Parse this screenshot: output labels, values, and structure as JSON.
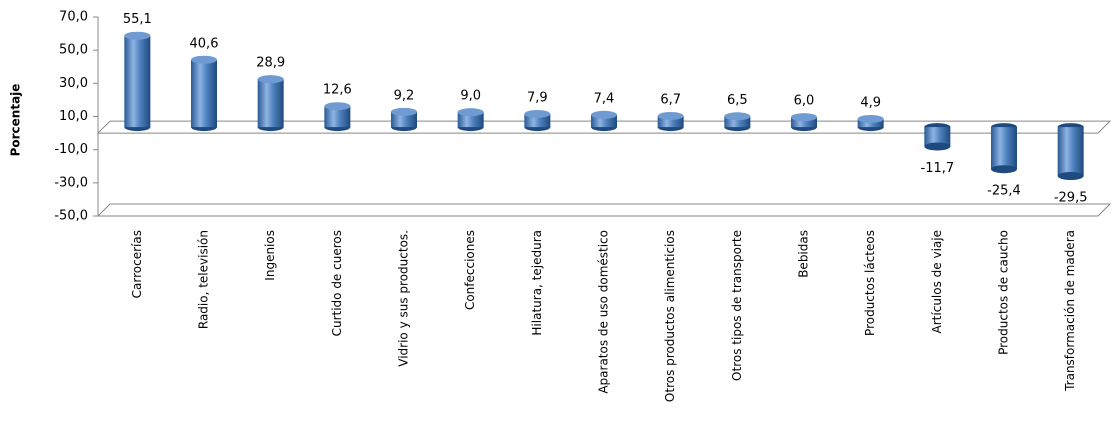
{
  "chart_data": {
    "type": "bar",
    "y_label": "Porcentaje",
    "categories": [
      "Carrocerías",
      "Radio, televisión",
      "Ingenios",
      "Curtido de cueros",
      "Vidrio y sus productos.",
      "Confecciones",
      "Hilatura, tejedura",
      "Aparatos de uso doméstico",
      "Otros productos alimenticios",
      "Otros tipos de transporte",
      "Bebidas",
      "Productos lácteos",
      "Artículos de viaje",
      "Productos de caucho",
      "Transformación de madera"
    ],
    "values": [
      55.1,
      40.6,
      28.9,
      12.6,
      9.2,
      9.0,
      7.9,
      7.4,
      6.7,
      6.5,
      6.0,
      4.9,
      -11.7,
      -25.4,
      -29.5
    ],
    "value_labels": [
      "55,1",
      "40,6",
      "28,9",
      "12,6",
      "9,2",
      "9,0",
      "7,9",
      "7,4",
      "6,7",
      "6,5",
      "6,0",
      "4,9",
      "-11,7",
      "-25,4",
      "-29,5"
    ],
    "color": "#4f81bd",
    "ylim": [
      -50,
      70
    ],
    "yticks": [
      {
        "value": -50,
        "label": "-50,0"
      },
      {
        "value": -30,
        "label": "-30,0"
      },
      {
        "value": -10,
        "label": "-10,0"
      },
      {
        "value": 10,
        "label": "10,0"
      },
      {
        "value": 30,
        "label": "30,0"
      },
      {
        "value": 50,
        "label": "50,0"
      },
      {
        "value": 70,
        "label": "70,0"
      }
    ]
  }
}
